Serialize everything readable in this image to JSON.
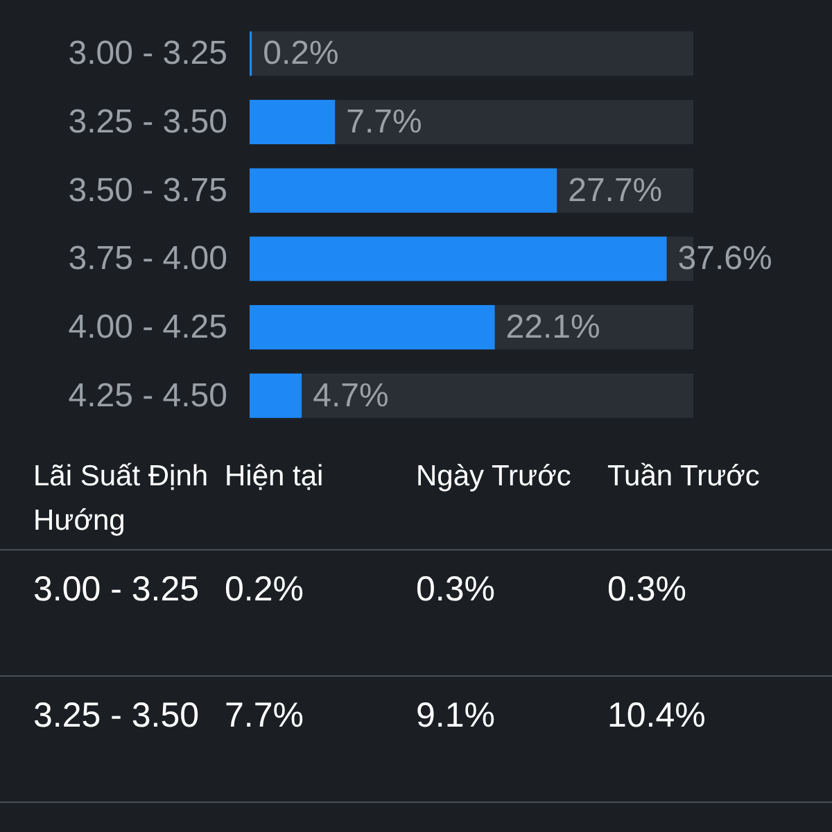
{
  "chart_data": [
    {
      "type": "bar",
      "orientation": "horizontal",
      "categories": [
        "3.00 - 3.25",
        "3.25 - 3.50",
        "3.50 - 3.75",
        "3.75 - 4.00",
        "4.00 - 4.25",
        "4.25 - 4.50"
      ],
      "values": [
        0.2,
        7.7,
        27.7,
        37.6,
        22.1,
        4.7
      ],
      "value_labels": [
        "0.2%",
        "7.7%",
        "27.7%",
        "37.6%",
        "22.1%",
        "4.7%"
      ],
      "color": "#1e88f5"
    },
    {
      "type": "other",
      "categories": [
        "Lãi Suất Định Hướng",
        "Hiện tại",
        "Ngày Trước",
        "Tuần Trước"
      ],
      "annotations": [
        "3.00 - 3.25",
        "0.2%",
        "0.3%",
        "0.3%",
        "3.25 - 3.50",
        "7.7%",
        "9.1%",
        "10.4%"
      ]
    }
  ]
}
